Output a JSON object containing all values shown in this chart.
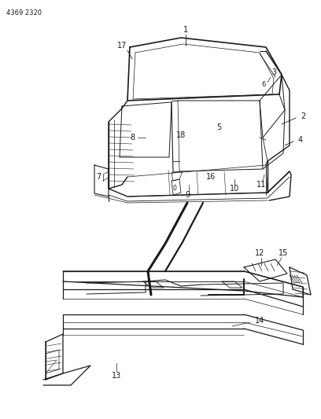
{
  "title": "4369 2320",
  "background_color": "#ffffff",
  "line_color": "#1a1a1a",
  "figsize": [
    4.08,
    5.33
  ],
  "dpi": 100
}
